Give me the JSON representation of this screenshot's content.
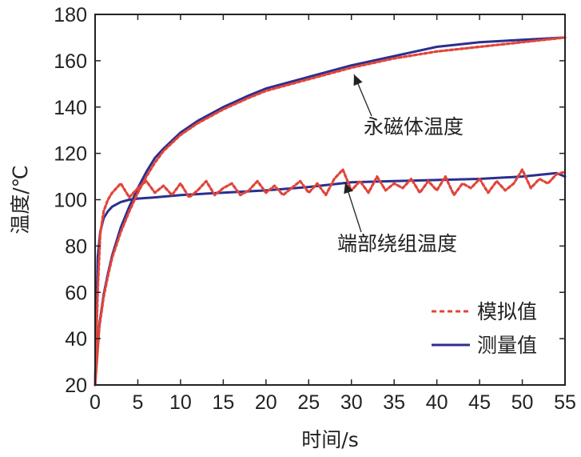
{
  "chart_data": {
    "type": "line",
    "title": "",
    "xlabel": "时间/s",
    "ylabel": "温度/℃",
    "xlim": [
      0,
      55
    ],
    "ylim": [
      20,
      180
    ],
    "xticks": [
      0,
      5,
      10,
      15,
      20,
      25,
      30,
      35,
      40,
      45,
      50,
      55
    ],
    "yticks": [
      20,
      40,
      60,
      80,
      100,
      120,
      140,
      160,
      180
    ],
    "grid": false,
    "legend_position": "bottom-right",
    "series": [
      {
        "name": "永磁体温度-模拟值",
        "legend": "模拟值",
        "style": "dashed",
        "color": "#e0453a",
        "x": [
          0,
          0.5,
          1,
          1.5,
          2,
          3,
          4,
          5,
          6,
          7,
          8,
          10,
          12,
          15,
          18,
          20,
          25,
          30,
          35,
          40,
          45,
          50,
          55
        ],
        "y": [
          20,
          45,
          58,
          67,
          75,
          86,
          95,
          103,
          110,
          116,
          121,
          128,
          133,
          139,
          144,
          147,
          152,
          157,
          161,
          164,
          166,
          168,
          170
        ]
      },
      {
        "name": "永磁体温度-测量值",
        "legend": "测量值",
        "style": "solid",
        "color": "#2b2f8f",
        "x": [
          0,
          0.5,
          1,
          1.5,
          2,
          3,
          4,
          5,
          6,
          7,
          8,
          10,
          12,
          15,
          18,
          20,
          25,
          30,
          35,
          40,
          45,
          50,
          55
        ],
        "y": [
          20,
          46,
          59,
          68,
          76,
          88,
          97,
          105,
          112,
          118,
          122,
          129,
          134,
          140,
          145,
          148,
          153,
          158,
          162,
          166,
          168,
          169,
          170
        ]
      },
      {
        "name": "端部绕组温度-模拟值",
        "legend": "模拟值",
        "style": "dashed",
        "color": "#e0453a",
        "x": [
          0,
          0.3,
          0.6,
          1,
          1.5,
          2,
          3,
          4,
          5,
          6,
          7,
          8,
          9,
          10,
          11,
          12,
          13,
          14,
          15,
          16,
          17,
          18,
          19,
          20,
          21,
          22,
          23,
          24,
          25,
          26,
          27,
          28,
          29,
          30,
          31,
          32,
          33,
          34,
          35,
          36,
          37,
          38,
          39,
          40,
          41,
          42,
          43,
          44,
          45,
          46,
          47,
          48,
          49,
          50,
          51,
          52,
          53,
          54,
          55
        ],
        "y": [
          20,
          60,
          85,
          95,
          100,
          103,
          107,
          101,
          105,
          108,
          103,
          106,
          102,
          107,
          101,
          104,
          108,
          102,
          105,
          107,
          102,
          104,
          108,
          103,
          106,
          102,
          105,
          108,
          103,
          107,
          102,
          109,
          113,
          104,
          108,
          103,
          110,
          104,
          107,
          105,
          109,
          103,
          108,
          104,
          110,
          102,
          107,
          105,
          109,
          103,
          108,
          104,
          107,
          113,
          105,
          109,
          107,
          111,
          112
        ]
      },
      {
        "name": "端部绕组温度-测量值",
        "legend": "测量值",
        "style": "solid",
        "color": "#2b2f8f",
        "x": [
          0,
          0.3,
          0.6,
          1,
          1.5,
          2,
          3,
          4,
          5,
          7,
          10,
          15,
          20,
          25,
          30,
          35,
          40,
          45,
          50,
          54,
          55
        ],
        "y": [
          20,
          75,
          86,
          92,
          95,
          97,
          99,
          100,
          100.5,
          101,
          102,
          103,
          104,
          105.5,
          107.5,
          108,
          108.5,
          109,
          110,
          111.5,
          110
        ]
      }
    ],
    "annotations": [
      {
        "text": "永磁体温度",
        "target_x": 30,
        "target_y": 158
      },
      {
        "text": "端部绕组温度",
        "target_x": 29,
        "target_y": 108
      }
    ],
    "legend_entries": [
      {
        "label": "模拟值",
        "style": "dashed",
        "color": "#e0453a"
      },
      {
        "label": "测量值",
        "style": "solid",
        "color": "#2b2f8f"
      }
    ]
  }
}
